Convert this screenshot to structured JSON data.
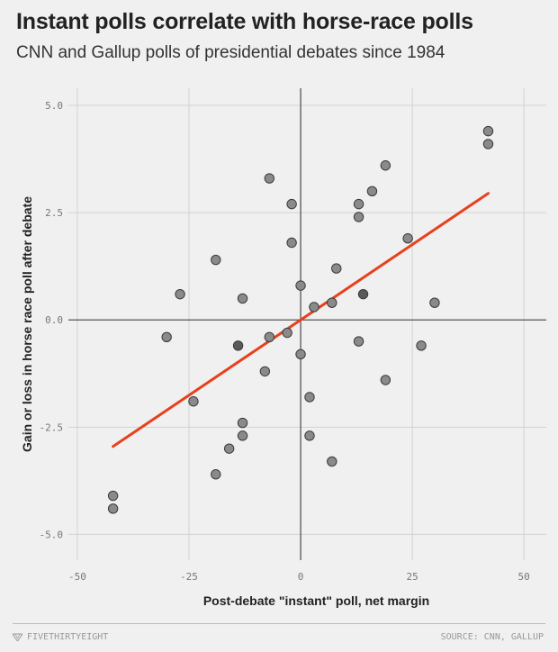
{
  "header": {
    "title": "Instant polls correlate with horse-race polls",
    "subtitle": "CNN and Gallup polls of presidential debates since 1984"
  },
  "footer": {
    "brand": "FIVETHIRTYEIGHT",
    "source": "SOURCE: CNN, GALLUP"
  },
  "colors": {
    "background": "#f0f0f0",
    "grid": "#d2d2d2",
    "axis": "#555555",
    "point_fill": "#8a8a8a",
    "point_fill_dark": "#5a5a5a",
    "point_stroke": "#3a3a3a",
    "trend": "#e8401c"
  },
  "chart_data": {
    "type": "scatter",
    "xlabel": "Post-debate \"instant\" poll, net margin",
    "ylabel": "Gain or loss in horse race poll after debate",
    "xlim": [
      -52,
      55
    ],
    "ylim": [
      -5.6,
      5.4
    ],
    "xticks": [
      -50,
      -25,
      0,
      25,
      50
    ],
    "xtick_labels": [
      "-50",
      "-25",
      "0",
      "25",
      "50"
    ],
    "yticks": [
      5,
      2.5,
      0,
      -2.5,
      -5
    ],
    "ytick_labels": [
      "5.0",
      "2.5",
      "0.0",
      "-2.5",
      "-5.0"
    ],
    "grid": true,
    "points": [
      {
        "x": -42,
        "y": -4.1
      },
      {
        "x": -42,
        "y": -4.4
      },
      {
        "x": -30,
        "y": -0.4
      },
      {
        "x": -27,
        "y": 0.6
      },
      {
        "x": -24,
        "y": -1.9
      },
      {
        "x": -19,
        "y": 1.4
      },
      {
        "x": -19,
        "y": -3.6
      },
      {
        "x": -16,
        "y": -3.0
      },
      {
        "x": -14,
        "y": -0.6,
        "dark": true
      },
      {
        "x": -13,
        "y": 0.5
      },
      {
        "x": -13,
        "y": -2.4
      },
      {
        "x": -13,
        "y": -2.7
      },
      {
        "x": -8,
        "y": -1.2
      },
      {
        "x": -7,
        "y": 3.3
      },
      {
        "x": -7,
        "y": -0.4
      },
      {
        "x": -3,
        "y": -0.3
      },
      {
        "x": -2,
        "y": 2.7
      },
      {
        "x": -2,
        "y": 1.8
      },
      {
        "x": 0,
        "y": 0.8
      },
      {
        "x": 0,
        "y": -0.8
      },
      {
        "x": 2,
        "y": -1.8
      },
      {
        "x": 2,
        "y": -2.7
      },
      {
        "x": 3,
        "y": 0.3
      },
      {
        "x": 7,
        "y": 0.4
      },
      {
        "x": 7,
        "y": -3.3
      },
      {
        "x": 8,
        "y": 1.2
      },
      {
        "x": 13,
        "y": 2.7
      },
      {
        "x": 13,
        "y": 2.4
      },
      {
        "x": 13,
        "y": -0.5
      },
      {
        "x": 14,
        "y": 0.6,
        "dark": true
      },
      {
        "x": 16,
        "y": 3.0
      },
      {
        "x": 19,
        "y": 3.6
      },
      {
        "x": 19,
        "y": -1.4
      },
      {
        "x": 24,
        "y": 1.9
      },
      {
        "x": 27,
        "y": -0.6
      },
      {
        "x": 30,
        "y": 0.4
      },
      {
        "x": 42,
        "y": 4.4
      },
      {
        "x": 42,
        "y": 4.1
      }
    ],
    "trendline": {
      "x": [
        -42,
        42
      ],
      "y": [
        -2.95,
        2.95
      ]
    }
  }
}
